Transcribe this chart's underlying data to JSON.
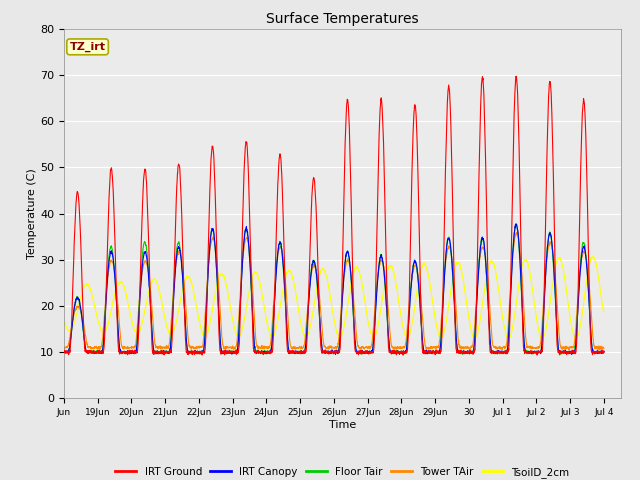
{
  "title": "Surface Temperatures",
  "xlabel": "Time",
  "ylabel": "Temperature (C)",
  "ylim": [
    0,
    80
  ],
  "annotation_text": "TZ_irt",
  "annotation_color": "#8B0000",
  "annotation_bg": "#FFFFCC",
  "annotation_border": "#AAAA00",
  "background_color": "#E8E8E8",
  "plot_bg": "#EBEBEB",
  "legend_entries": [
    "IRT Ground",
    "IRT Canopy",
    "Floor Tair",
    "Tower TAir",
    "TsoilD_2cm"
  ],
  "legend_colors": [
    "#FF0000",
    "#0000FF",
    "#00CC00",
    "#FF8800",
    "#FFFF00"
  ],
  "tick_labels": [
    "Jun",
    "19Jun",
    "20Jun",
    "21Jun",
    "22Jun",
    "23Jun",
    "24Jun",
    "25Jun",
    "26Jun",
    "27Jun",
    "28Jun",
    "29Jun",
    "30",
    "Jul 1",
    "Jul 2",
    "Jul 3",
    "Jul 4"
  ],
  "num_days": 16,
  "num_points_per_day": 144,
  "figsize": [
    6.4,
    4.8
  ],
  "dpi": 100
}
